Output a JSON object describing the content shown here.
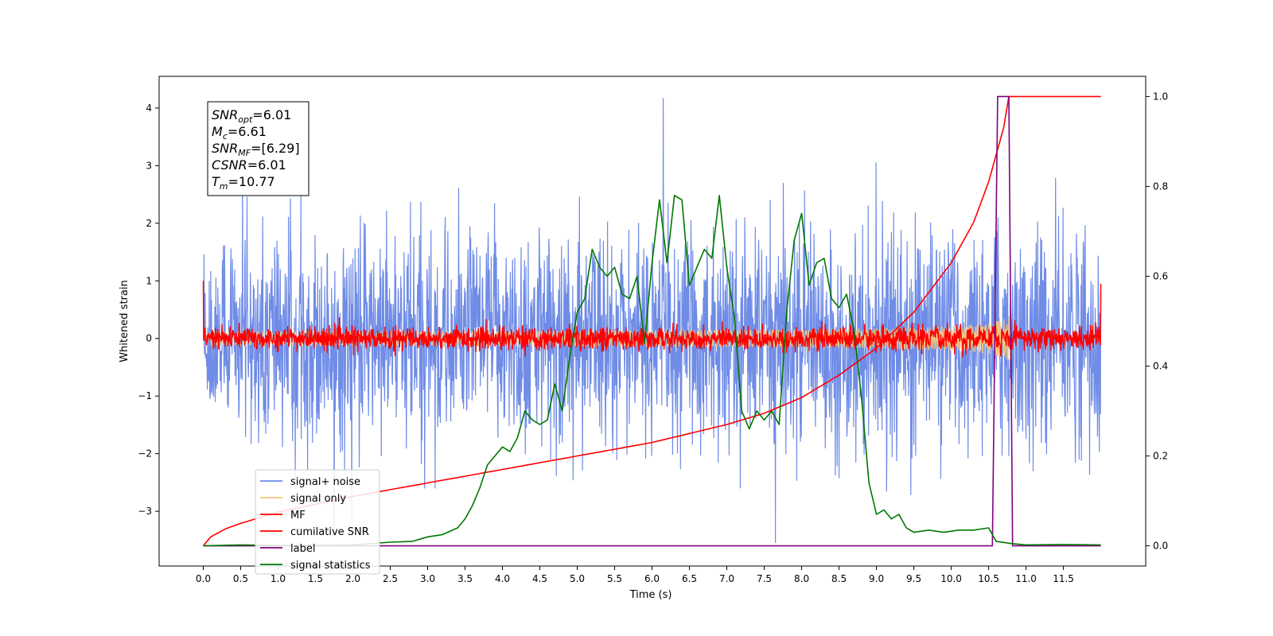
{
  "chart_data": {
    "type": "line",
    "title": "",
    "xlabel": "Time (s)",
    "ylabel": "Whitened strain",
    "xlim": [
      -0.59,
      12.6
    ],
    "ylim_left": [
      -3.95,
      4.55
    ],
    "ylim_right": [
      -0.045,
      1.045
    ],
    "grid": false,
    "legend_position": "bottom-left",
    "x_tick_labels": [
      "0.0",
      "0.5",
      "1.0",
      "1.5",
      "2.0",
      "2.5",
      "3.0",
      "3.5",
      "4.0",
      "4.5",
      "5.0",
      "5.5",
      "6.0",
      "6.5",
      "7.0",
      "7.5",
      "8.0",
      "8.5",
      "9.0",
      "9.5",
      "10.0",
      "10.5",
      "11.0",
      "11.5"
    ],
    "y_left_tick_labels": [
      "−3",
      "−2",
      "−1",
      "0",
      "1",
      "2",
      "3",
      "4"
    ],
    "y_right_tick_labels": [
      "0.0",
      "0.2",
      "0.4",
      "0.6",
      "0.8",
      "1.0"
    ],
    "annotation_box": {
      "lines": [
        {
          "base": "SNR",
          "sub": "opt",
          "value": "=6.01"
        },
        {
          "base": "M",
          "sub": "c",
          "value": "=6.61"
        },
        {
          "base": "SNR",
          "sub": "MF",
          "value": "=[6.29]"
        },
        {
          "base": "CSNR",
          "sub": "",
          "value": "=6.01"
        },
        {
          "base": "T",
          "sub": "m",
          "value": "=10.77"
        }
      ]
    },
    "series": [
      {
        "name": "signal+ noise",
        "color": "#6f8ce6",
        "axis": "left",
        "kind": "noise",
        "envelope": 1.5,
        "min": -3.55,
        "max": 4.17
      },
      {
        "name": "signal only",
        "color": "#f4c77a",
        "axis": "left",
        "kind": "chirp",
        "x_end": 10.82,
        "peak": 0.5
      },
      {
        "name": "MF",
        "color": "#ff0000",
        "axis": "left",
        "kind": "mf_noise",
        "envelope": 0.2,
        "start": 1.0,
        "end": 0.95
      },
      {
        "name": "cumilative SNR",
        "color": "#ff0000",
        "axis": "right",
        "x": [
          0.0,
          0.05,
          0.1,
          0.3,
          0.5,
          1.0,
          2.0,
          3.0,
          4.0,
          5.0,
          6.0,
          7.0,
          7.5,
          8.0,
          8.5,
          9.0,
          9.5,
          10.0,
          10.3,
          10.5,
          10.7,
          10.77,
          12.0
        ],
        "values": [
          0.0,
          0.01,
          0.02,
          0.038,
          0.05,
          0.075,
          0.11,
          0.14,
          0.17,
          0.2,
          0.23,
          0.27,
          0.295,
          0.33,
          0.38,
          0.44,
          0.52,
          0.63,
          0.72,
          0.81,
          0.93,
          1.0,
          1.0
        ]
      },
      {
        "name": "label",
        "color": "#800080",
        "axis": "right",
        "x": [
          0.0,
          10.55,
          10.62,
          10.77,
          10.82,
          12.0
        ],
        "values": [
          0.0,
          0.0,
          1.0,
          1.0,
          0.0,
          0.0
        ]
      },
      {
        "name": "signal statistics",
        "color": "#007700",
        "axis": "right",
        "x": [
          0.0,
          0.5,
          1.0,
          1.5,
          2.0,
          2.5,
          2.8,
          3.0,
          3.2,
          3.4,
          3.5,
          3.6,
          3.7,
          3.8,
          3.9,
          4.0,
          4.1,
          4.2,
          4.3,
          4.4,
          4.5,
          4.6,
          4.7,
          4.8,
          4.9,
          5.0,
          5.1,
          5.2,
          5.3,
          5.4,
          5.5,
          5.6,
          5.7,
          5.8,
          5.9,
          6.0,
          6.1,
          6.2,
          6.3,
          6.4,
          6.5,
          6.6,
          6.7,
          6.8,
          6.9,
          7.0,
          7.1,
          7.2,
          7.3,
          7.4,
          7.5,
          7.6,
          7.7,
          7.8,
          7.9,
          8.0,
          8.1,
          8.2,
          8.3,
          8.4,
          8.5,
          8.6,
          8.7,
          8.8,
          8.9,
          9.0,
          9.1,
          9.2,
          9.3,
          9.4,
          9.5,
          9.7,
          9.9,
          10.1,
          10.3,
          10.5,
          10.6,
          10.8,
          11.0,
          11.5,
          12.0
        ],
        "values": [
          0.0,
          0.002,
          0.001,
          0.001,
          0.002,
          0.008,
          0.01,
          0.02,
          0.025,
          0.04,
          0.06,
          0.09,
          0.13,
          0.18,
          0.2,
          0.22,
          0.21,
          0.24,
          0.3,
          0.28,
          0.27,
          0.28,
          0.36,
          0.3,
          0.42,
          0.52,
          0.55,
          0.66,
          0.62,
          0.6,
          0.62,
          0.56,
          0.55,
          0.6,
          0.45,
          0.63,
          0.77,
          0.63,
          0.78,
          0.77,
          0.58,
          0.62,
          0.66,
          0.64,
          0.78,
          0.62,
          0.51,
          0.3,
          0.26,
          0.3,
          0.28,
          0.3,
          0.27,
          0.52,
          0.68,
          0.74,
          0.58,
          0.63,
          0.64,
          0.55,
          0.53,
          0.56,
          0.48,
          0.33,
          0.14,
          0.07,
          0.08,
          0.06,
          0.07,
          0.04,
          0.03,
          0.035,
          0.03,
          0.035,
          0.035,
          0.04,
          0.01,
          0.005,
          0.002,
          0.003,
          0.002
        ]
      }
    ]
  }
}
